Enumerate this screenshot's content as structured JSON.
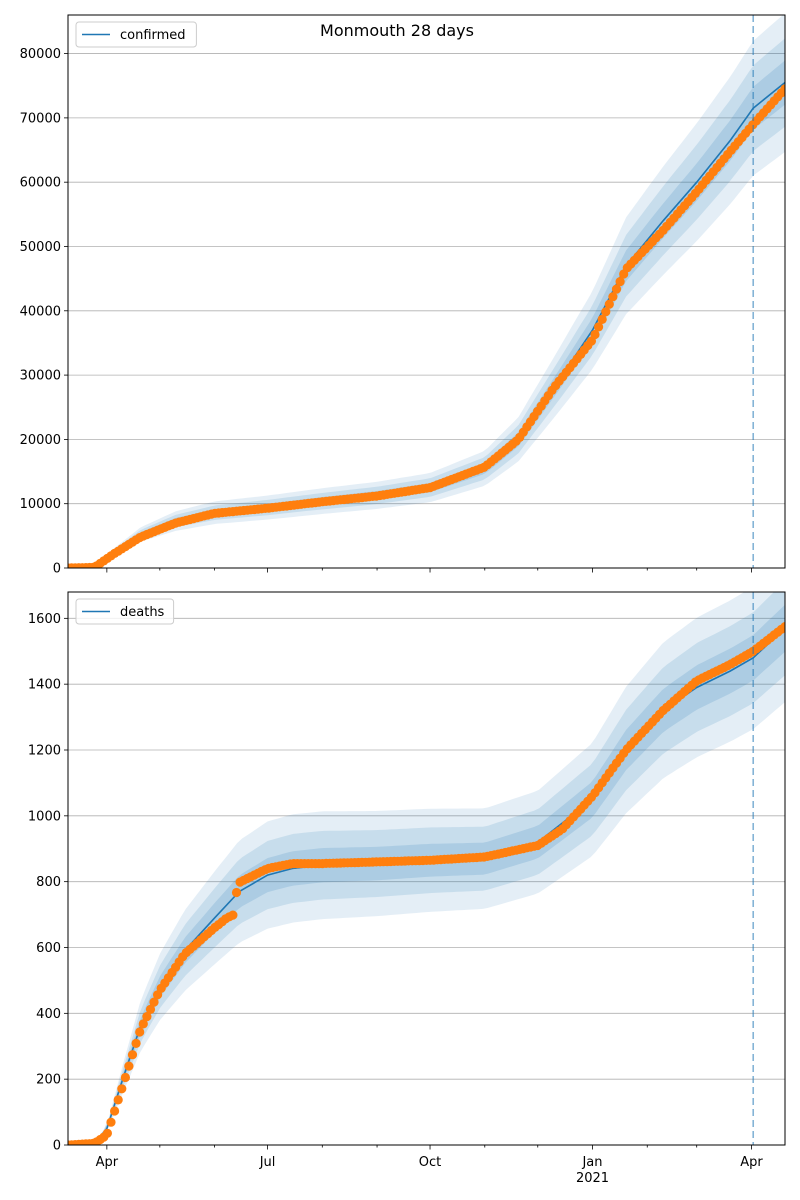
{
  "chart_data": [
    {
      "type": "line",
      "title": "Monmouth 28 days",
      "xlabel": "",
      "ylabel": "",
      "legend": {
        "label": "confirmed",
        "placement": "top-left"
      },
      "x_range": [
        "2020-03-10",
        "2021-04-20"
      ],
      "ylim": [
        0,
        86000
      ],
      "yticks": [
        0,
        10000,
        20000,
        30000,
        40000,
        50000,
        60000,
        70000,
        80000
      ],
      "grid": "horizontal",
      "forecast_start": "2021-04-02",
      "series": [
        {
          "name": "confirmed",
          "kind": "model",
          "color": "#1f77b4",
          "points": [
            [
              "2020-03-10",
              0
            ],
            [
              "2020-03-25",
              300
            ],
            [
              "2020-04-05",
              2500
            ],
            [
              "2020-04-20",
              5200
            ],
            [
              "2020-05-10",
              7300
            ],
            [
              "2020-06-01",
              8600
            ],
            [
              "2020-07-01",
              9400
            ],
            [
              "2020-08-01",
              10400
            ],
            [
              "2020-09-01",
              11300
            ],
            [
              "2020-10-01",
              12500
            ],
            [
              "2020-11-01",
              15500
            ],
            [
              "2020-11-20",
              20000
            ],
            [
              "2020-12-10",
              28000
            ],
            [
              "2021-01-01",
              37000
            ],
            [
              "2021-01-20",
              47000
            ],
            [
              "2021-02-10",
              54000
            ],
            [
              "2021-03-01",
              60000
            ],
            [
              "2021-03-20",
              66500
            ],
            [
              "2021-04-02",
              71500
            ],
            [
              "2021-04-20",
              75500
            ]
          ]
        },
        {
          "name": "observed",
          "kind": "observed",
          "color": "#ff7f0e",
          "points": [
            [
              "2020-03-10",
              0
            ],
            [
              "2020-03-25",
              100
            ],
            [
              "2020-04-05",
              2200
            ],
            [
              "2020-04-20",
              4800
            ],
            [
              "2020-05-10",
              7000
            ],
            [
              "2020-06-01",
              8500
            ],
            [
              "2020-07-01",
              9300
            ],
            [
              "2020-08-01",
              10300
            ],
            [
              "2020-09-01",
              11200
            ],
            [
              "2020-10-01",
              12500
            ],
            [
              "2020-11-01",
              15700
            ],
            [
              "2020-11-20",
              20000
            ],
            [
              "2020-12-10",
              28000
            ],
            [
              "2021-01-01",
              35500
            ],
            [
              "2021-01-20",
              46500
            ],
            [
              "2021-02-10",
              52500
            ],
            [
              "2021-03-01",
              58500
            ],
            [
              "2021-03-20",
              64800
            ],
            [
              "2021-04-02",
              69000
            ],
            [
              "2021-04-20",
              74500
            ]
          ]
        }
      ]
    },
    {
      "type": "line",
      "title": "",
      "xlabel": "",
      "ylabel": "",
      "legend": {
        "label": "deaths",
        "placement": "top-left"
      },
      "x_range": [
        "2020-03-10",
        "2021-04-20"
      ],
      "ylim": [
        0,
        1680
      ],
      "yticks": [
        0,
        200,
        400,
        600,
        800,
        1000,
        1200,
        1400,
        1600
      ],
      "grid": "horizontal",
      "forecast_start": "2021-04-02",
      "xticks": [
        "Apr",
        "Jul",
        "Oct",
        "Jan",
        "Apr"
      ],
      "xtick_year": "2021",
      "series": [
        {
          "name": "deaths",
          "kind": "model",
          "color": "#1f77b4",
          "points": [
            [
              "2020-03-10",
              0
            ],
            [
              "2020-03-25",
              5
            ],
            [
              "2020-04-01",
              50
            ],
            [
              "2020-04-10",
              200
            ],
            [
              "2020-04-20",
              360
            ],
            [
              "2020-05-01",
              480
            ],
            [
              "2020-05-15",
              590
            ],
            [
              "2020-06-01",
              690
            ],
            [
              "2020-06-15",
              770
            ],
            [
              "2020-07-01",
              820
            ],
            [
              "2020-07-15",
              840
            ],
            [
              "2020-08-01",
              850
            ],
            [
              "2020-09-01",
              855
            ],
            [
              "2020-10-01",
              865
            ],
            [
              "2020-11-01",
              870
            ],
            [
              "2020-12-01",
              920
            ],
            [
              "2021-01-01",
              1050
            ],
            [
              "2021-01-20",
              1200
            ],
            [
              "2021-02-10",
              1320
            ],
            [
              "2021-03-01",
              1390
            ],
            [
              "2021-03-20",
              1440
            ],
            [
              "2021-04-02",
              1480
            ],
            [
              "2021-04-20",
              1570
            ]
          ]
        },
        {
          "name": "observed",
          "kind": "observed",
          "color": "#ff7f0e",
          "points": [
            [
              "2020-03-10",
              0
            ],
            [
              "2020-03-25",
              5
            ],
            [
              "2020-04-01",
              30
            ],
            [
              "2020-04-10",
              180
            ],
            [
              "2020-04-20",
              350
            ],
            [
              "2020-05-01",
              470
            ],
            [
              "2020-05-15",
              580
            ],
            [
              "2020-06-01",
              660
            ],
            [
              "2020-06-08",
              690
            ],
            [
              "2020-06-12",
              700
            ],
            [
              "2020-06-14",
              795
            ],
            [
              "2020-07-01",
              840
            ],
            [
              "2020-07-15",
              855
            ],
            [
              "2020-08-01",
              855
            ],
            [
              "2020-09-01",
              860
            ],
            [
              "2020-10-01",
              865
            ],
            [
              "2020-11-01",
              875
            ],
            [
              "2020-12-01",
              910
            ],
            [
              "2020-12-15",
              960
            ],
            [
              "2021-01-01",
              1060
            ],
            [
              "2021-01-20",
              1200
            ],
            [
              "2021-02-10",
              1320
            ],
            [
              "2021-03-01",
              1410
            ],
            [
              "2021-03-20",
              1460
            ],
            [
              "2021-04-02",
              1500
            ],
            [
              "2021-04-20",
              1575
            ]
          ]
        }
      ]
    }
  ]
}
